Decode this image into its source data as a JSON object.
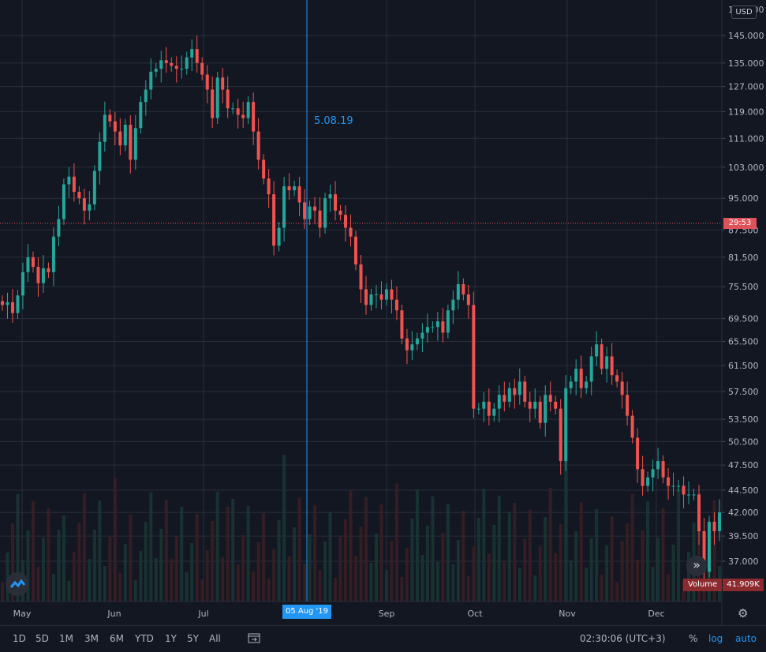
{
  "chart_data": {
    "type": "candlestick",
    "currency": "USD",
    "x_labels": [
      "May",
      "Jun",
      "Jul",
      "05 Aug '19",
      "Sep",
      "Oct",
      "Nov",
      "Dec"
    ],
    "y_ticks": [
      145.0,
      135.0,
      127.0,
      119.0,
      111.0,
      103.0,
      95.0,
      87.5,
      81.5,
      75.5,
      69.5,
      65.5,
      61.5,
      57.5,
      53.5,
      50.5,
      47.5,
      44.5,
      42.0,
      39.5,
      37.0
    ],
    "y_tick_labels": [
      "145.000",
      "135.000",
      "127.000",
      "119.000",
      "111.000",
      "103.000",
      "95.000",
      "87.500",
      "81.500",
      "75.500",
      "69.500",
      "65.500",
      "61.500",
      "57.500",
      "53.500",
      "50.500",
      "47.500",
      "44.500",
      "42.000",
      "39.500",
      "37.000"
    ],
    "y_top_label": "150.000",
    "scale": "log",
    "close_series": [
      72,
      72.5,
      70.5,
      73.8,
      78.4,
      81.5,
      79.5,
      76.2,
      79.2,
      78.4,
      86,
      90,
      98.5,
      100.5,
      96.6,
      95,
      92,
      93.5,
      102,
      110,
      118,
      116,
      113,
      109,
      115,
      105,
      114,
      122,
      126,
      132,
      133,
      136,
      135,
      134,
      133,
      133,
      137,
      140,
      135,
      131,
      126,
      117,
      130,
      126,
      120,
      120,
      118,
      117,
      122,
      113,
      105,
      100,
      96,
      84,
      88,
      98,
      97,
      98,
      94,
      90,
      93,
      92,
      88,
      95,
      96,
      92,
      91,
      88,
      86,
      80,
      75,
      72,
      74,
      74,
      73,
      75,
      73,
      71,
      66,
      64,
      65,
      66,
      67,
      68,
      68,
      69,
      67,
      71,
      73,
      76,
      74,
      72,
      55,
      55,
      56,
      54,
      55,
      57,
      56,
      58,
      57,
      59,
      56,
      55,
      56,
      53,
      57,
      56,
      55,
      48,
      58,
      59,
      61,
      58,
      59,
      63,
      65,
      61,
      63,
      60,
      59,
      57,
      54,
      51,
      47,
      45,
      46,
      47,
      48,
      46,
      45,
      45,
      45,
      44,
      44,
      44,
      40,
      36,
      41,
      40,
      42
    ],
    "crosshair": {
      "date_label": "05 Aug '19",
      "value_label": "5.08.19",
      "horizontal_value": 89.0
    },
    "last_price": {
      "label": "29:53",
      "value": 89.0
    },
    "volume": {
      "label": "Volume",
      "value": "41.909K"
    },
    "grid": true,
    "colors": {
      "up": "#26a69a",
      "down": "#ef5350",
      "crosshair": "#2196f3",
      "background": "#131722",
      "grid": "#2a2e39"
    }
  },
  "toolbar": {
    "timeframes": [
      "1D",
      "5D",
      "1M",
      "3M",
      "6M",
      "YTD",
      "1Y",
      "5Y",
      "All"
    ],
    "time": "02:30:06 (UTC+3)",
    "percent": "%",
    "log": "log",
    "auto": "auto",
    "icons": [
      "calendar-range-icon",
      "gear-icon",
      "tradingview-logo-icon",
      "scroll-forward-icon"
    ]
  }
}
